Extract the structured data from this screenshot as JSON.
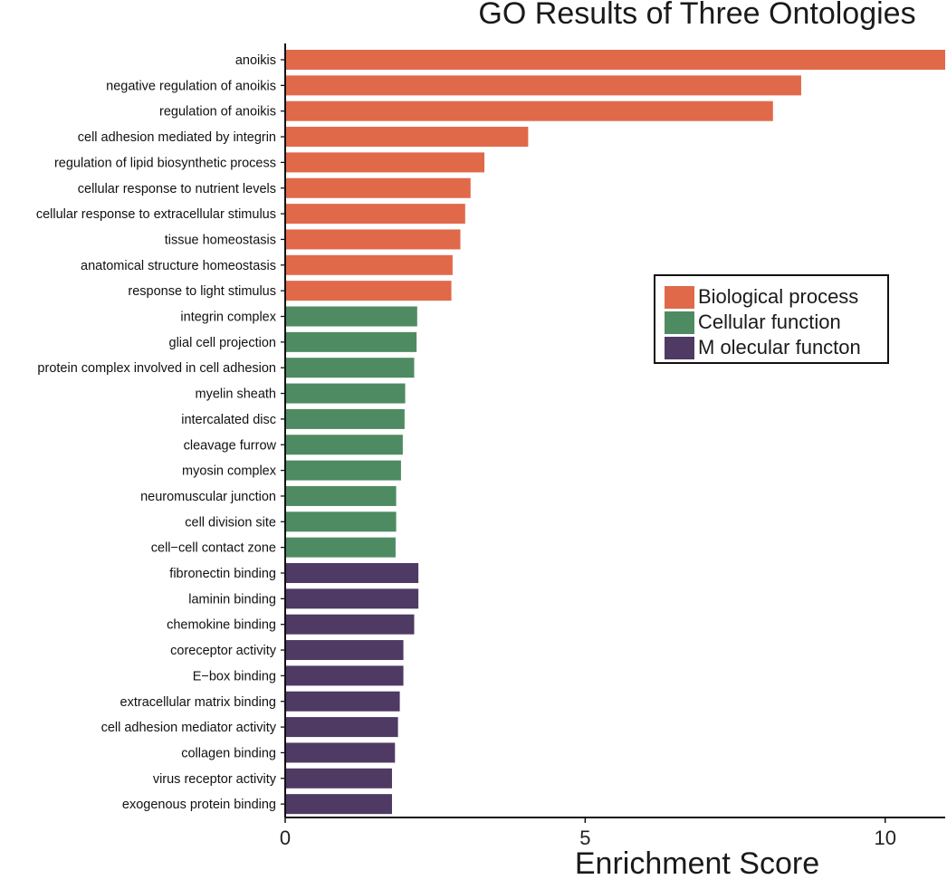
{
  "colors": {
    "biological": "#E0694A",
    "cellular": "#4E8B62",
    "molecular": "#4E3A63"
  },
  "chart_data": {
    "type": "bar",
    "orientation": "horizontal",
    "title": "GO Results of Three Ontologies",
    "xlabel": "Enrichment Score",
    "ylabel": "",
    "xlim": [
      0,
      11
    ],
    "xticks": [
      "0",
      "5",
      "10"
    ],
    "grid": false,
    "legend_position": "right",
    "legend": [
      {
        "key": "biological",
        "label": "Biological process"
      },
      {
        "key": "cellular",
        "label": "Cellular function"
      },
      {
        "key": "molecular",
        "label": "M olecular functon"
      }
    ],
    "categories": [
      "anoikis",
      "negative regulation of anoikis",
      "regulation of anoikis",
      "cell adhesion mediated by integrin",
      "regulation of lipid biosynthetic process",
      "cellular response to nutrient levels",
      "cellular response to extracellular stimulus",
      "tissue homeostasis",
      "anatomical structure homeostasis",
      "response to light stimulus",
      "integrin complex",
      "glial cell projection",
      "protein complex involved in cell adhesion",
      "myelin sheath",
      "intercalated disc",
      "cleavage furrow",
      "myosin complex",
      "neuromuscular junction",
      "cell division site",
      "cell−cell contact zone",
      "fibronectin binding",
      "laminin binding",
      "chemokine binding",
      "coreceptor activity",
      "E−box binding",
      "extracellular matrix binding",
      "cell adhesion mediator activity",
      "collagen binding",
      "virus receptor activity",
      "exogenous protein binding"
    ],
    "values": [
      11.0,
      8.6,
      8.13,
      4.05,
      3.32,
      3.09,
      3.0,
      2.92,
      2.79,
      2.77,
      2.2,
      2.19,
      2.15,
      2.0,
      1.99,
      1.96,
      1.93,
      1.85,
      1.85,
      1.84,
      2.22,
      2.22,
      2.15,
      1.97,
      1.97,
      1.91,
      1.88,
      1.83,
      1.78,
      1.78
    ],
    "groups": [
      "biological",
      "biological",
      "biological",
      "biological",
      "biological",
      "biological",
      "biological",
      "biological",
      "biological",
      "biological",
      "cellular",
      "cellular",
      "cellular",
      "cellular",
      "cellular",
      "cellular",
      "cellular",
      "cellular",
      "cellular",
      "cellular",
      "molecular",
      "molecular",
      "molecular",
      "molecular",
      "molecular",
      "molecular",
      "molecular",
      "molecular",
      "molecular",
      "molecular"
    ]
  }
}
